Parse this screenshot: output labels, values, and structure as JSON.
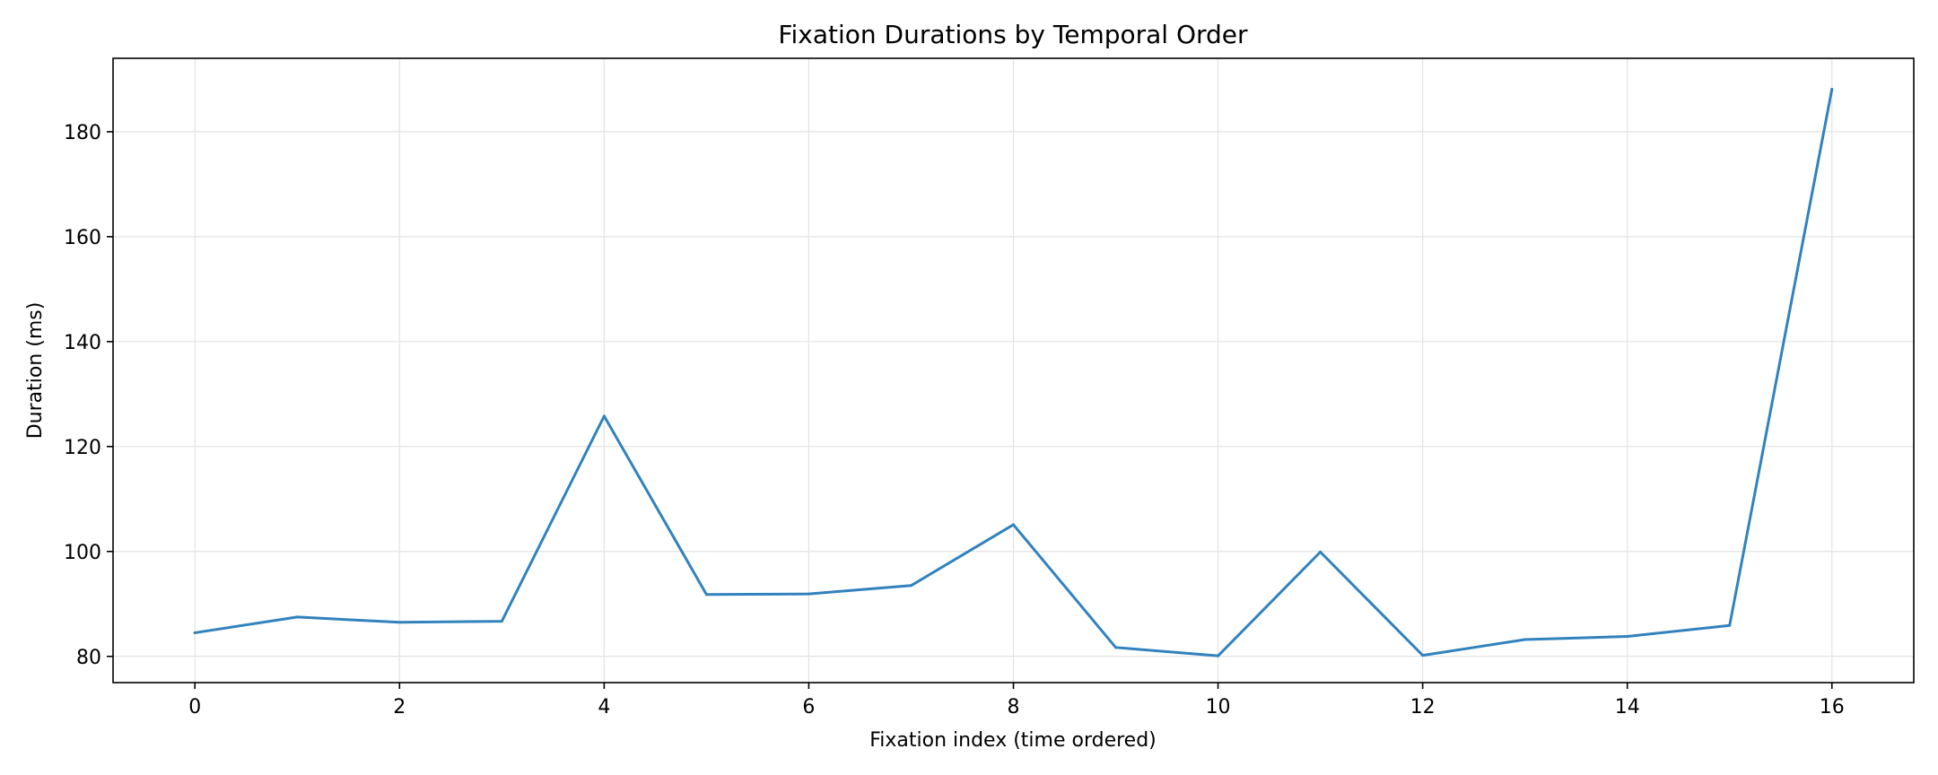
{
  "chart_data": {
    "type": "line",
    "title": "Fixation Durations by Temporal Order",
    "xlabel": "Fixation index (time ordered)",
    "ylabel": "Duration (ms)",
    "xlim": [
      -0.8,
      16.8
    ],
    "ylim": [
      75,
      194
    ],
    "xticks": [
      0,
      2,
      4,
      6,
      8,
      10,
      12,
      14,
      16
    ],
    "yticks": [
      80,
      100,
      120,
      140,
      160,
      180
    ],
    "grid": true,
    "legend": "none",
    "series": [
      {
        "color": "#3182bd",
        "x": [
          0,
          1,
          2,
          3,
          4,
          5,
          6,
          7,
          8,
          9,
          10,
          11,
          12,
          13,
          14,
          15,
          16
        ],
        "y": [
          84.5,
          87.5,
          86.5,
          86.7,
          125.8,
          91.8,
          91.9,
          93.5,
          105.1,
          81.7,
          80.1,
          99.9,
          80.2,
          83.2,
          83.8,
          85.9,
          188.1
        ]
      }
    ]
  }
}
